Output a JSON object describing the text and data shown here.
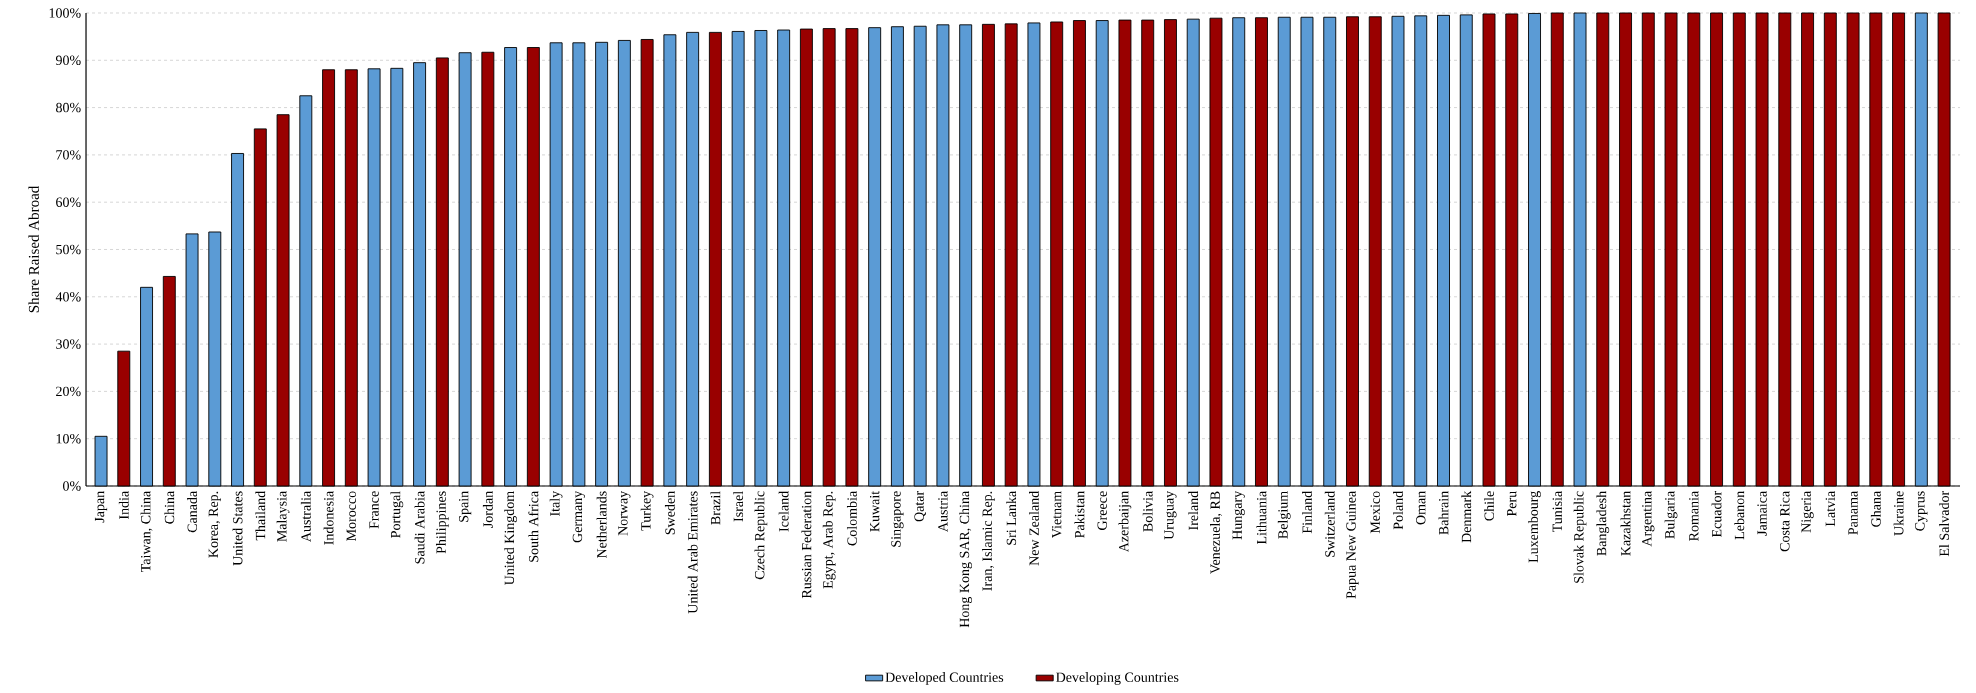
{
  "chart_data": {
    "type": "bar",
    "ylabel": "Share Raised Abroad",
    "categories": [
      "Japan",
      "India",
      "Taiwan, China",
      "China",
      "Canada",
      "Korea, Rep.",
      "United States",
      "Thailand",
      "Malaysia",
      "Australia",
      "Indonesia",
      "Morocco",
      "France",
      "Portugal",
      "Saudi Arabia",
      "Philippines",
      "Spain",
      "Jordan",
      "United Kingdom",
      "South Africa",
      "Italy",
      "Germany",
      "Netherlands",
      "Norway",
      "Turkey",
      "Sweden",
      "United Arab Emirates",
      "Brazil",
      "Israel",
      "Czech Republic",
      "Iceland",
      "Russian Federation",
      "Egypt, Arab Rep.",
      "Colombia",
      "Kuwait",
      "Singapore",
      "Qatar",
      "Austria",
      "Hong Kong SAR, China",
      "Iran, Islamic Rep.",
      "Sri Lanka",
      "New Zealand",
      "Vietnam",
      "Pakistan",
      "Greece",
      "Azerbaijan",
      "Bolivia",
      "Uruguay",
      "Ireland",
      "Venezuela, RB",
      "Hungary",
      "Lithuania",
      "Belgium",
      "Finland",
      "Switzerland",
      "Papua New Guinea",
      "Mexico",
      "Poland",
      "Oman",
      "Bahrain",
      "Denmark",
      "Chile",
      "Peru",
      "Luxembourg",
      "Tunisia",
      "Slovak Republic",
      "Bangladesh",
      "Kazakhstan",
      "Argentina",
      "Bulgaria",
      "Romania",
      "Ecuador",
      "Lebanon",
      "Jamaica",
      "Costa Rica",
      "Nigeria",
      "Latvia",
      "Panama",
      "Ghana",
      "Ukraine",
      "Cyprus",
      "El Salvador"
    ],
    "series": [
      {
        "name": "Developed Countries",
        "color": "#5b9bd5",
        "values": [
          10.5,
          null,
          42.0,
          null,
          53.3,
          53.7,
          70.3,
          null,
          null,
          82.5,
          null,
          null,
          88.2,
          88.3,
          89.5,
          null,
          91.6,
          null,
          92.7,
          null,
          93.7,
          93.7,
          93.8,
          94.2,
          null,
          95.4,
          95.9,
          null,
          96.1,
          96.3,
          96.4,
          null,
          null,
          null,
          96.9,
          97.1,
          97.2,
          97.5,
          97.5,
          null,
          null,
          97.9,
          null,
          null,
          98.4,
          null,
          null,
          null,
          98.7,
          null,
          99.0,
          null,
          99.1,
          99.1,
          99.1,
          null,
          null,
          99.3,
          99.4,
          99.5,
          99.6,
          null,
          null,
          99.9,
          null,
          100,
          null,
          null,
          null,
          null,
          null,
          null,
          null,
          null,
          null,
          null,
          null,
          null,
          null,
          null,
          100,
          null
        ]
      },
      {
        "name": "Developing Countries",
        "color": "#990000",
        "values": [
          null,
          28.5,
          null,
          44.3,
          null,
          null,
          null,
          75.5,
          78.5,
          null,
          88.0,
          88.0,
          null,
          null,
          null,
          90.5,
          null,
          91.7,
          null,
          92.7,
          null,
          null,
          null,
          null,
          94.4,
          null,
          null,
          95.9,
          null,
          null,
          null,
          96.6,
          96.7,
          96.7,
          null,
          null,
          null,
          null,
          null,
          97.6,
          97.7,
          null,
          98.1,
          98.4,
          null,
          98.5,
          98.5,
          98.6,
          null,
          98.9,
          null,
          99.0,
          null,
          null,
          null,
          99.2,
          99.2,
          null,
          null,
          null,
          null,
          99.8,
          99.8,
          null,
          100,
          null,
          100,
          100,
          100,
          100,
          100,
          100,
          100,
          100,
          100,
          100,
          100,
          100,
          100,
          100,
          null,
          100
        ]
      }
    ],
    "ylim": [
      0,
      100
    ],
    "yticks": [
      {
        "value": 0,
        "label": "0%"
      },
      {
        "value": 10,
        "label": "10%"
      },
      {
        "value": 20,
        "label": "20%"
      },
      {
        "value": 30,
        "label": "30%"
      },
      {
        "value": 40,
        "label": "40%"
      },
      {
        "value": 50,
        "label": "50%"
      },
      {
        "value": 60,
        "label": "60%"
      },
      {
        "value": 70,
        "label": "70%"
      },
      {
        "value": 80,
        "label": "80%"
      },
      {
        "value": 90,
        "label": "90%"
      },
      {
        "value": 100,
        "label": "100%"
      }
    ],
    "grid": "y",
    "legend": "bottom"
  }
}
